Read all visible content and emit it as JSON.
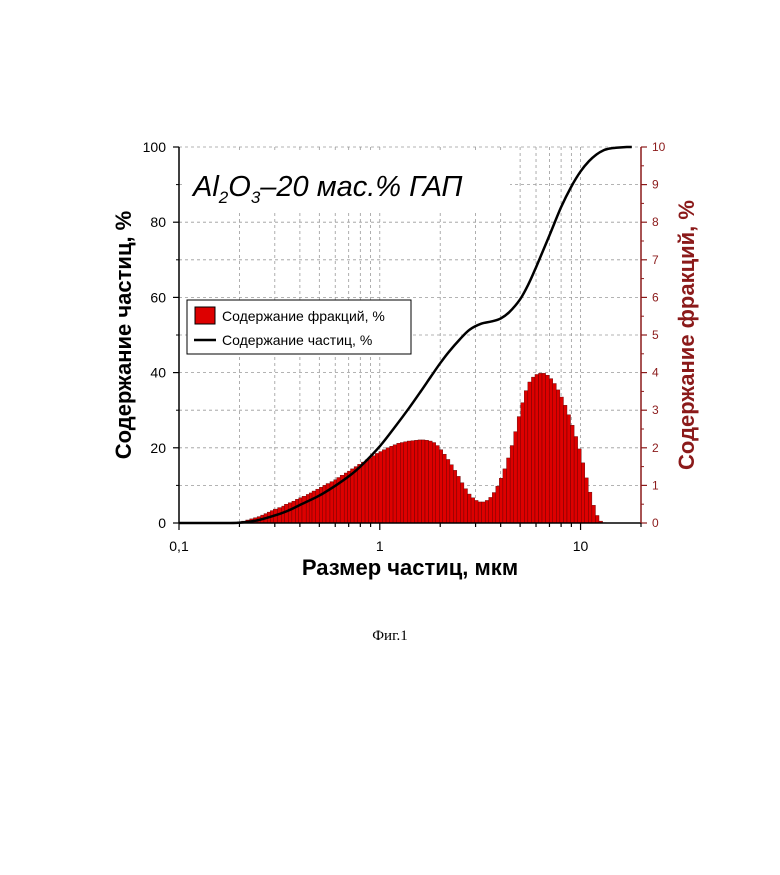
{
  "chart_data": {
    "type": "bar",
    "title": {
      "parts": [
        {
          "text": "Al",
          "sub": false
        },
        {
          "text": "2",
          "sub": true
        },
        {
          "text": "O",
          "sub": false
        },
        {
          "text": "3",
          "sub": true
        },
        {
          "text": "–20 мас.% ГАП",
          "sub": false
        }
      ]
    },
    "xlabel": "Размер частиц, мкм",
    "ylabel_left": "Содержание частиц, %",
    "ylabel_right": "Содержание фракций, %",
    "x_scale": "log",
    "xlim": [
      0.1,
      20
    ],
    "x_ticks": [
      {
        "value": 0.1,
        "label": "0,1"
      },
      {
        "value": 1,
        "label": "1"
      },
      {
        "value": 10,
        "label": "10"
      }
    ],
    "ylim_left": [
      0,
      100
    ],
    "y_ticks_left": [
      "0",
      "20",
      "40",
      "60",
      "80",
      "100"
    ],
    "ylim_right": [
      0,
      10
    ],
    "y_ticks_right": [
      "0",
      "1",
      "2",
      "3",
      "4",
      "5",
      "6",
      "7",
      "8",
      "9",
      "10"
    ],
    "grid": true,
    "legend": {
      "placement": "middle-left",
      "entries": [
        {
          "label": "Содержание фракций, %",
          "kind": "bar"
        },
        {
          "label": "Содержание частиц, %",
          "kind": "line"
        }
      ]
    },
    "bar_color": "#dd0000",
    "right_axis_color": "#8b1a1a",
    "series": [
      {
        "axis": "right",
        "kind": "bar",
        "x": [
          0.19,
          0.2,
          0.21,
          0.22,
          0.23,
          0.24,
          0.25,
          0.26,
          0.27,
          0.28,
          0.29,
          0.3,
          0.32,
          0.33,
          0.34,
          0.36,
          0.37,
          0.39,
          0.4,
          0.42,
          0.44,
          0.45,
          0.47,
          0.49,
          0.51,
          0.53,
          0.55,
          0.58,
          0.6,
          0.62,
          0.65,
          0.68,
          0.7,
          0.73,
          0.76,
          0.79,
          0.83,
          0.86,
          0.9,
          0.93,
          0.97,
          1.01,
          1.05,
          1.1,
          1.14,
          1.19,
          1.24,
          1.29,
          1.34,
          1.4,
          1.46,
          1.52,
          1.58,
          1.65,
          1.71,
          1.79,
          1.86,
          1.94,
          2.02,
          2.1,
          2.19,
          2.28,
          2.37,
          2.47,
          2.57,
          2.68,
          2.79,
          2.91,
          3.03,
          3.15,
          3.28,
          3.42,
          3.56,
          3.71,
          3.86,
          4.02,
          4.19,
          4.37,
          4.55,
          4.74,
          4.93,
          5.14,
          5.35,
          5.58,
          5.81,
          6.05,
          6.3,
          6.56,
          6.84,
          7.12,
          7.42,
          7.73,
          8.05,
          8.39,
          8.73,
          9.1,
          9.48,
          9.87,
          10.28,
          10.71,
          11.16,
          11.62,
          12.11,
          12.61,
          13.14,
          13.68,
          14.25,
          14.85,
          15.47,
          16.11
        ],
        "values": [
          0.02,
          0.03,
          0.05,
          0.08,
          0.11,
          0.14,
          0.17,
          0.21,
          0.25,
          0.29,
          0.33,
          0.37,
          0.41,
          0.45,
          0.5,
          0.54,
          0.58,
          0.63,
          0.67,
          0.71,
          0.76,
          0.8,
          0.85,
          0.9,
          0.95,
          1.0,
          1.05,
          1.1,
          1.15,
          1.21,
          1.27,
          1.33,
          1.38,
          1.44,
          1.5,
          1.56,
          1.62,
          1.68,
          1.74,
          1.79,
          1.85,
          1.9,
          1.95,
          2.0,
          2.04,
          2.08,
          2.12,
          2.14,
          2.16,
          2.18,
          2.19,
          2.2,
          2.21,
          2.21,
          2.2,
          2.18,
          2.14,
          2.06,
          1.95,
          1.83,
          1.69,
          1.55,
          1.4,
          1.24,
          1.07,
          0.91,
          0.77,
          0.67,
          0.6,
          0.56,
          0.56,
          0.6,
          0.68,
          0.81,
          0.98,
          1.19,
          1.44,
          1.73,
          2.06,
          2.43,
          2.83,
          3.2,
          3.52,
          3.75,
          3.88,
          3.95,
          3.98,
          3.98,
          3.93,
          3.84,
          3.71,
          3.54,
          3.35,
          3.13,
          2.88,
          2.6,
          2.3,
          1.97,
          1.6,
          1.2,
          0.82,
          0.47,
          0.2,
          0.05,
          0.01,
          0.0,
          0.0,
          0.0,
          0.0,
          0.0
        ]
      },
      {
        "axis": "left",
        "kind": "line",
        "x": [
          0.1,
          0.18,
          0.2,
          0.22,
          0.25,
          0.3,
          0.35,
          0.4,
          0.5,
          0.6,
          0.7,
          0.8,
          1.0,
          1.2,
          1.4,
          1.6,
          1.8,
          2.0,
          2.2,
          2.5,
          2.8,
          3.2,
          3.6,
          4.0,
          4.4,
          5.0,
          5.5,
          6.0,
          7.0,
          8.0,
          9.0,
          10.0,
          11.0,
          12.0,
          13.0,
          14.0,
          15.0,
          17.0,
          18.0
        ],
        "values": [
          0.0,
          0.0,
          0.1,
          0.3,
          0.8,
          2.0,
          3.3,
          4.8,
          7.3,
          9.9,
          12.4,
          15.0,
          20.4,
          25.8,
          30.6,
          35.0,
          39.0,
          42.5,
          45.4,
          48.8,
          51.4,
          53.0,
          53.6,
          54.4,
          56.0,
          59.5,
          63.5,
          68.0,
          76.5,
          84.0,
          89.5,
          93.5,
          96.2,
          98.0,
          99.1,
          99.6,
          99.8,
          100.0,
          100.0
        ]
      }
    ]
  },
  "caption": "Фиг.1"
}
